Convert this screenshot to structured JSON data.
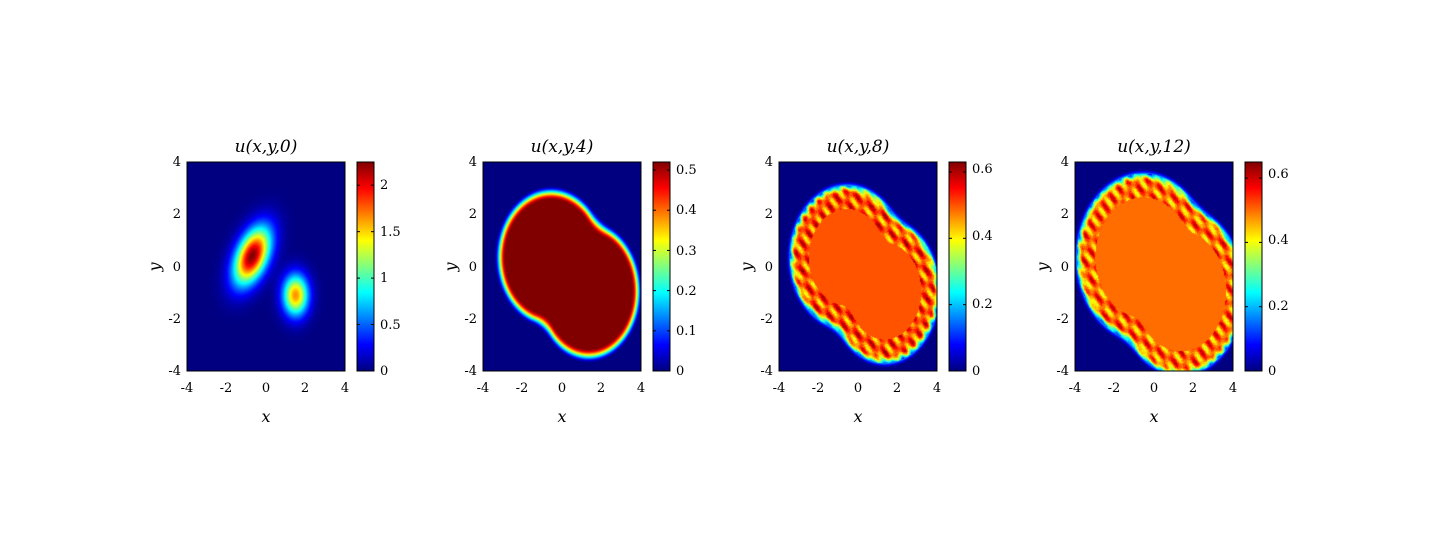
{
  "chart_data": [
    {
      "type": "heatmap",
      "title": "u(x,y,0)",
      "xlabel": "x",
      "ylabel": "y",
      "xlim": [
        -4,
        4
      ],
      "ylim": [
        -4,
        4
      ],
      "xticks": [
        "-4",
        "-2",
        "0",
        "2",
        "4"
      ],
      "yticks": [
        "-4",
        "-2",
        "0",
        "2",
        "4"
      ],
      "colormap": "jet",
      "clim": [
        0,
        2.25
      ],
      "colorbar_ticks": [
        "0",
        "0.5",
        "1",
        "1.5",
        "2"
      ],
      "colorbar_tick_values": [
        0,
        0.5,
        1,
        1.5,
        2
      ],
      "shape": "two-gaussians",
      "blobs": [
        {
          "x": -0.7,
          "y": 0.4,
          "amplitude": 2.25,
          "sx": 0.5,
          "sy": 0.85,
          "tilt_deg": 35
        },
        {
          "x": 1.5,
          "y": -1.1,
          "amplitude": 1.65,
          "sx": 0.45,
          "sy": 0.55,
          "tilt_deg": 0
        }
      ]
    },
    {
      "type": "heatmap",
      "title": "u(x,y,4)",
      "xlabel": "x",
      "ylabel": "y",
      "xlim": [
        -4,
        4
      ],
      "ylim": [
        -4,
        4
      ],
      "xticks": [
        "-4",
        "-2",
        "0",
        "2",
        "4"
      ],
      "yticks": [
        "-4",
        "-2",
        "0",
        "2",
        "4"
      ],
      "colormap": "jet",
      "clim": [
        0,
        0.52
      ],
      "colorbar_ticks": [
        "0",
        "0.1",
        "0.2",
        "0.3",
        "0.4",
        "0.5"
      ],
      "colorbar_tick_values": [
        0,
        0.1,
        0.2,
        0.3,
        0.4,
        0.5
      ],
      "shape": "plateau",
      "plateau_value": 0.52,
      "boundary_texture": false
    },
    {
      "type": "heatmap",
      "title": "u(x,y,8)",
      "xlabel": "x",
      "ylabel": "y",
      "xlim": [
        -4,
        4
      ],
      "ylim": [
        -4,
        4
      ],
      "xticks": [
        "-4",
        "-2",
        "0",
        "2",
        "4"
      ],
      "yticks": [
        "-4",
        "-2",
        "0",
        "2",
        "4"
      ],
      "colormap": "jet",
      "clim": [
        0,
        0.63
      ],
      "colorbar_ticks": [
        "0",
        "0.2",
        "0.4",
        "0.6"
      ],
      "colorbar_tick_values": [
        0,
        0.2,
        0.4,
        0.6
      ],
      "shape": "plateau",
      "plateau_value": 0.5,
      "boundary_texture": true
    },
    {
      "type": "heatmap",
      "title": "u(x,y,12)",
      "xlabel": "x",
      "ylabel": "y",
      "xlim": [
        -4,
        4
      ],
      "ylim": [
        -4,
        4
      ],
      "xticks": [
        "-4",
        "-2",
        "0",
        "2",
        "4"
      ],
      "yticks": [
        "-4",
        "-2",
        "0",
        "2",
        "4"
      ],
      "colormap": "jet",
      "clim": [
        0,
        0.65
      ],
      "colorbar_ticks": [
        "0",
        "0.2",
        "0.4",
        "0.6"
      ],
      "colorbar_tick_values": [
        0,
        0.2,
        0.4,
        0.6
      ],
      "shape": "plateau",
      "plateau_value": 0.5,
      "boundary_texture": true
    }
  ]
}
